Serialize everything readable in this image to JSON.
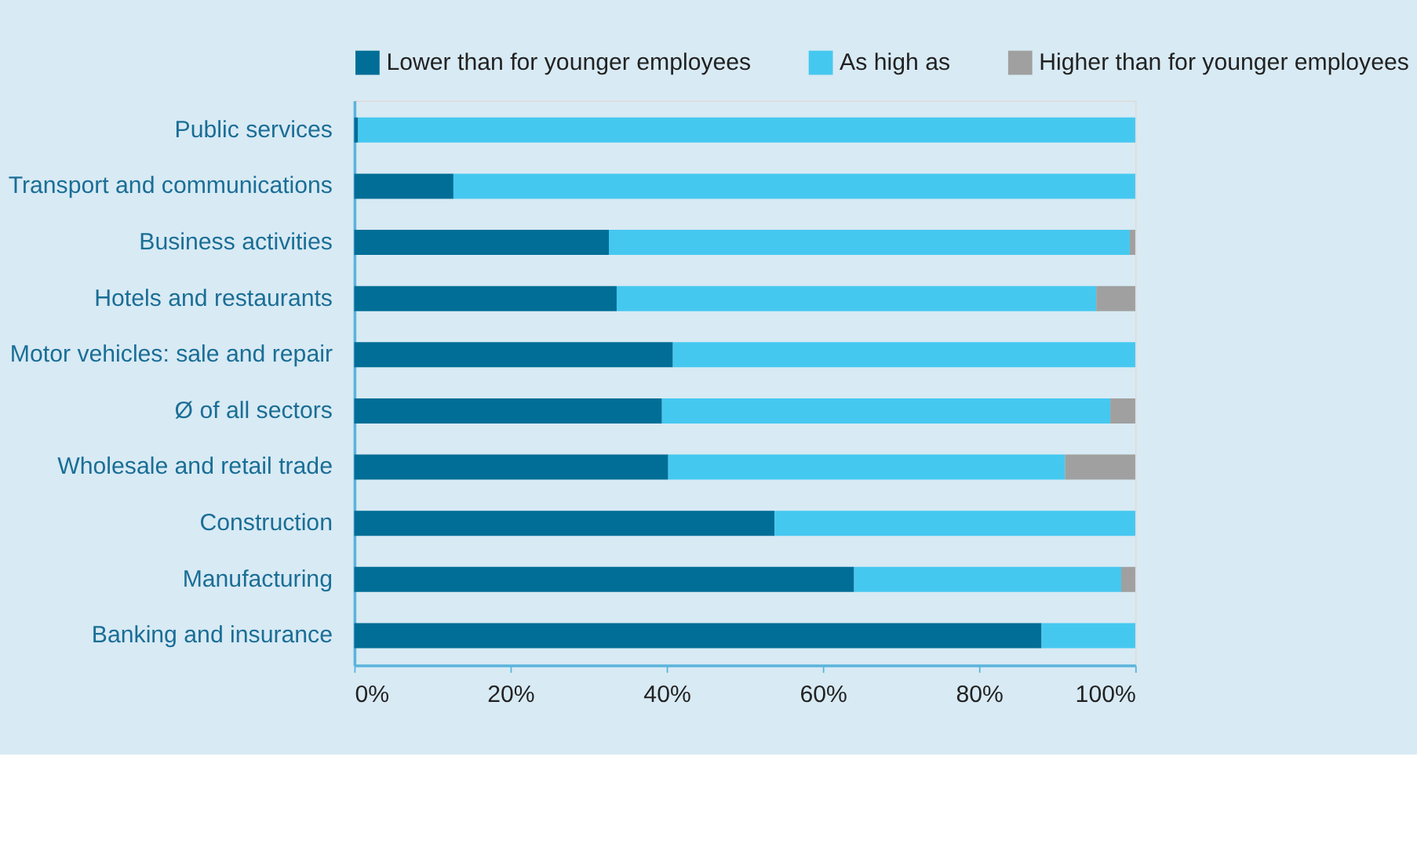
{
  "chart_data": {
    "type": "bar",
    "orientation": "horizontal",
    "stacked": true,
    "categories": [
      "Public services",
      "Transport and communications",
      "Business activities",
      "Hotels and restaurants",
      "Motor vehicles: sale and repair",
      "Ø of all sectors",
      "Wholesale and retail trade",
      "Construction",
      "Manufacturing",
      "Banking and insurance"
    ],
    "series": [
      {
        "name": "Lower than for younger employees",
        "color": "#006e96",
        "values": [
          0.5,
          12.7,
          32.6,
          33.6,
          40.8,
          39.4,
          40.2,
          53.8,
          64,
          88
        ]
      },
      {
        "name": "As high as",
        "color": "#45c8f0",
        "values": [
          99.5,
          87.3,
          66.7,
          61.4,
          59.2,
          57.4,
          50.8,
          46.2,
          34.2,
          12
        ]
      },
      {
        "name": "Higher than for younger employees",
        "color": "#a0a0a0",
        "values": [
          0,
          0,
          0.7,
          5,
          0,
          3.2,
          9,
          0,
          1.8,
          0
        ]
      }
    ],
    "xlim": [
      0,
      100
    ],
    "xticks": [
      {
        "value": 0,
        "label": "0%"
      },
      {
        "value": 20,
        "label": "20%"
      },
      {
        "value": 40,
        "label": "40%"
      },
      {
        "value": 60,
        "label": "60%"
      },
      {
        "value": 80,
        "label": "80%"
      },
      {
        "value": 100,
        "label": "100%"
      }
    ],
    "grid": false,
    "legend": "top"
  }
}
